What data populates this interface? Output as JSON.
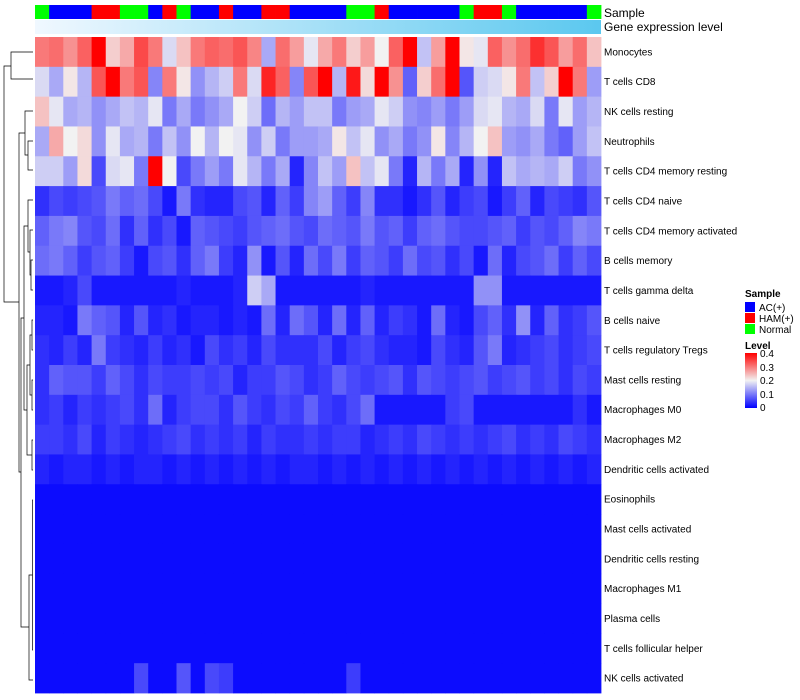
{
  "chart_data": {
    "type": "heatmap",
    "title": "",
    "annotation_tracks": [
      {
        "name": "Sample",
        "categories": [
          "N",
          "A",
          "A",
          "A",
          "H",
          "H",
          "N",
          "N",
          "A",
          "H",
          "N",
          "A",
          "A",
          "H",
          "A",
          "A",
          "H",
          "H",
          "A",
          "A",
          "A",
          "A",
          "N",
          "N",
          "H",
          "A",
          "A",
          "A",
          "A",
          "A",
          "N",
          "H",
          "H",
          "N",
          "A",
          "A",
          "A",
          "A",
          "A",
          "N"
        ]
      },
      {
        "name": "Gene expression level"
      }
    ],
    "sample_colors": {
      "A": "#0000ff",
      "H": "#ff0000",
      "N": "#00ff00"
    },
    "expr_level_gradient": [
      "#f0f8ff",
      "#5bc8ef"
    ],
    "rows": [
      "Monocytes",
      "T cells CD8",
      "NK cells resting",
      "Neutrophils",
      "T cells CD4 memory resting",
      "T cells CD4 naive",
      "T cells CD4 memory activated",
      "B cells memory",
      "T cells gamma delta",
      "B cells naive",
      "T cells regulatory  Tregs",
      "Mast cells resting",
      "Macrophages M0",
      "Macrophages M2",
      "Dendritic cells activated",
      "Eosinophils",
      "Mast cells activated",
      "Dendritic cells resting",
      "Macrophages M1",
      "Plasma cells",
      "T cells follicular helper",
      "NK cells activated"
    ],
    "values": [
      [
        0.3,
        0.31,
        0.28,
        0.32,
        0.4,
        0.23,
        0.26,
        0.34,
        0.3,
        0.18,
        0.24,
        0.3,
        0.32,
        0.31,
        0.33,
        0.29,
        0.14,
        0.31,
        0.27,
        0.19,
        0.26,
        0.3,
        0.23,
        0.27,
        0.2,
        0.32,
        0.4,
        0.16,
        0.27,
        0.4,
        0.21,
        0.19,
        0.32,
        0.28,
        0.31,
        0.36,
        0.33,
        0.27,
        0.31,
        0.24
      ],
      [
        0.18,
        0.14,
        0.21,
        0.15,
        0.33,
        0.4,
        0.3,
        0.33,
        0.11,
        0.3,
        0.21,
        0.12,
        0.15,
        0.17,
        0.3,
        0.18,
        0.37,
        0.32,
        0.11,
        0.33,
        0.4,
        0.15,
        0.38,
        0.22,
        0.4,
        0.28,
        0.08,
        0.23,
        0.31,
        0.41,
        0.07,
        0.17,
        0.18,
        0.21,
        0.3,
        0.16,
        0.23,
        0.4,
        0.3,
        0.13
      ],
      [
        0.24,
        0.19,
        0.14,
        0.15,
        0.12,
        0.14,
        0.16,
        0.15,
        0.19,
        0.1,
        0.14,
        0.1,
        0.12,
        0.14,
        0.2,
        0.17,
        0.09,
        0.15,
        0.13,
        0.16,
        0.16,
        0.1,
        0.13,
        0.14,
        0.19,
        0.17,
        0.12,
        0.11,
        0.13,
        0.1,
        0.13,
        0.18,
        0.19,
        0.15,
        0.14,
        0.18,
        0.1,
        0.19,
        0.13,
        0.15
      ],
      [
        0.14,
        0.26,
        0.2,
        0.22,
        0.12,
        0.19,
        0.14,
        0.15,
        0.1,
        0.16,
        0.12,
        0.2,
        0.15,
        0.2,
        0.19,
        0.12,
        0.17,
        0.1,
        0.13,
        0.13,
        0.14,
        0.21,
        0.16,
        0.19,
        0.12,
        0.14,
        0.1,
        0.12,
        0.21,
        0.11,
        0.15,
        0.2,
        0.24,
        0.13,
        0.12,
        0.14,
        0.1,
        0.08,
        0.13,
        0.16
      ],
      [
        0.17,
        0.17,
        0.13,
        0.22,
        0.06,
        0.18,
        0.19,
        0.1,
        0.41,
        0.2,
        0.06,
        0.1,
        0.13,
        0.1,
        0.19,
        0.15,
        0.1,
        0.14,
        0.03,
        0.11,
        0.16,
        0.13,
        0.24,
        0.16,
        0.19,
        0.1,
        0.03,
        0.15,
        0.1,
        0.14,
        0.03,
        0.12,
        0.03,
        0.16,
        0.14,
        0.15,
        0.14,
        0.17,
        0.1,
        0.12
      ],
      [
        0.04,
        0.06,
        0.05,
        0.06,
        0.07,
        0.1,
        0.08,
        0.09,
        0.06,
        0.02,
        0.1,
        0.04,
        0.03,
        0.03,
        0.06,
        0.07,
        0.03,
        0.08,
        0.05,
        0.11,
        0.13,
        0.08,
        0.05,
        0.11,
        0.04,
        0.04,
        0.02,
        0.04,
        0.07,
        0.03,
        0.05,
        0.06,
        0.02,
        0.05,
        0.08,
        0.03,
        0.06,
        0.05,
        0.04,
        0.07
      ],
      [
        0.08,
        0.1,
        0.11,
        0.07,
        0.06,
        0.09,
        0.04,
        0.08,
        0.04,
        0.06,
        0.02,
        0.08,
        0.07,
        0.06,
        0.05,
        0.07,
        0.08,
        0.09,
        0.07,
        0.06,
        0.09,
        0.08,
        0.07,
        0.1,
        0.07,
        0.08,
        0.05,
        0.08,
        0.09,
        0.07,
        0.06,
        0.06,
        0.07,
        0.08,
        0.05,
        0.07,
        0.06,
        0.08,
        0.11,
        0.1
      ],
      [
        0.09,
        0.1,
        0.08,
        0.05,
        0.07,
        0.08,
        0.05,
        0.02,
        0.06,
        0.07,
        0.04,
        0.08,
        0.1,
        0.05,
        0.03,
        0.12,
        0.02,
        0.07,
        0.03,
        0.09,
        0.06,
        0.1,
        0.05,
        0.08,
        0.07,
        0.05,
        0.09,
        0.06,
        0.07,
        0.04,
        0.06,
        0.02,
        0.09,
        0.03,
        0.06,
        0.07,
        0.09,
        0.05,
        0.08,
        0.06
      ],
      [
        0.02,
        0.02,
        0.03,
        0.06,
        0.02,
        0.02,
        0.02,
        0.02,
        0.02,
        0.02,
        0.03,
        0.02,
        0.02,
        0.02,
        0.03,
        0.17,
        0.14,
        0.02,
        0.02,
        0.02,
        0.02,
        0.02,
        0.02,
        0.03,
        0.02,
        0.02,
        0.02,
        0.02,
        0.02,
        0.02,
        0.02,
        0.12,
        0.12,
        0.02,
        0.02,
        0.02,
        0.02,
        0.02,
        0.02,
        0.02
      ],
      [
        0.03,
        0.03,
        0.02,
        0.1,
        0.08,
        0.07,
        0.03,
        0.07,
        0.03,
        0.04,
        0.02,
        0.03,
        0.03,
        0.02,
        0.03,
        0.02,
        0.09,
        0.03,
        0.09,
        0.07,
        0.03,
        0.09,
        0.03,
        0.08,
        0.03,
        0.05,
        0.04,
        0.02,
        0.09,
        0.03,
        0.02,
        0.06,
        0.08,
        0.04,
        0.12,
        0.03,
        0.08,
        0.04,
        0.05,
        0.07
      ],
      [
        0.04,
        0.03,
        0.05,
        0.03,
        0.1,
        0.05,
        0.04,
        0.03,
        0.05,
        0.03,
        0.04,
        0.02,
        0.06,
        0.04,
        0.05,
        0.03,
        0.06,
        0.04,
        0.04,
        0.04,
        0.06,
        0.03,
        0.05,
        0.06,
        0.04,
        0.03,
        0.03,
        0.02,
        0.06,
        0.04,
        0.03,
        0.07,
        0.1,
        0.03,
        0.04,
        0.05,
        0.06,
        0.04,
        0.05,
        0.06
      ],
      [
        0.04,
        0.08,
        0.07,
        0.07,
        0.05,
        0.08,
        0.06,
        0.04,
        0.06,
        0.05,
        0.05,
        0.06,
        0.05,
        0.06,
        0.03,
        0.05,
        0.05,
        0.07,
        0.06,
        0.04,
        0.05,
        0.08,
        0.06,
        0.05,
        0.06,
        0.07,
        0.04,
        0.07,
        0.06,
        0.05,
        0.06,
        0.07,
        0.05,
        0.06,
        0.07,
        0.05,
        0.06,
        0.04,
        0.06,
        0.05
      ],
      [
        0.04,
        0.05,
        0.03,
        0.05,
        0.04,
        0.05,
        0.06,
        0.04,
        0.09,
        0.03,
        0.05,
        0.06,
        0.06,
        0.04,
        0.07,
        0.05,
        0.04,
        0.06,
        0.05,
        0.08,
        0.05,
        0.04,
        0.06,
        0.09,
        0.02,
        0.02,
        0.02,
        0.02,
        0.02,
        0.05,
        0.06,
        0.02,
        0.02,
        0.02,
        0.02,
        0.02,
        0.02,
        0.02,
        0.04,
        0.02
      ],
      [
        0.05,
        0.05,
        0.04,
        0.06,
        0.03,
        0.05,
        0.04,
        0.03,
        0.04,
        0.05,
        0.06,
        0.04,
        0.05,
        0.04,
        0.05,
        0.03,
        0.05,
        0.04,
        0.04,
        0.05,
        0.04,
        0.05,
        0.05,
        0.03,
        0.04,
        0.05,
        0.04,
        0.06,
        0.05,
        0.04,
        0.05,
        0.04,
        0.05,
        0.06,
        0.04,
        0.05,
        0.04,
        0.06,
        0.05,
        0.04
      ],
      [
        0.03,
        0.02,
        0.03,
        0.03,
        0.02,
        0.03,
        0.02,
        0.03,
        0.03,
        0.02,
        0.03,
        0.02,
        0.03,
        0.02,
        0.03,
        0.02,
        0.03,
        0.02,
        0.03,
        0.03,
        0.02,
        0.03,
        0.02,
        0.03,
        0.02,
        0.03,
        0.02,
        0.03,
        0.02,
        0.03,
        0.02,
        0.03,
        0.02,
        0.03,
        0.02,
        0.03,
        0.02,
        0.03,
        0.02,
        0.03
      ],
      [
        0.01,
        0.01,
        0.01,
        0.01,
        0.01,
        0.01,
        0.01,
        0.01,
        0.01,
        0.01,
        0.01,
        0.01,
        0.01,
        0.01,
        0.01,
        0.01,
        0.01,
        0.01,
        0.01,
        0.01,
        0.01,
        0.01,
        0.01,
        0.01,
        0.01,
        0.01,
        0.01,
        0.01,
        0.01,
        0.01,
        0.01,
        0.01,
        0.01,
        0.01,
        0.01,
        0.01,
        0.01,
        0.01,
        0.01,
        0.01
      ],
      [
        0.01,
        0.01,
        0.01,
        0.01,
        0.01,
        0.01,
        0.01,
        0.01,
        0.01,
        0.01,
        0.01,
        0.01,
        0.01,
        0.01,
        0.01,
        0.01,
        0.01,
        0.01,
        0.01,
        0.01,
        0.01,
        0.01,
        0.01,
        0.01,
        0.01,
        0.01,
        0.01,
        0.01,
        0.01,
        0.01,
        0.01,
        0.01,
        0.01,
        0.01,
        0.01,
        0.01,
        0.01,
        0.01,
        0.01,
        0.01
      ],
      [
        0.01,
        0.01,
        0.01,
        0.01,
        0.01,
        0.01,
        0.01,
        0.01,
        0.01,
        0.01,
        0.01,
        0.01,
        0.01,
        0.01,
        0.01,
        0.01,
        0.01,
        0.01,
        0.01,
        0.01,
        0.01,
        0.01,
        0.01,
        0.01,
        0.01,
        0.01,
        0.01,
        0.01,
        0.01,
        0.01,
        0.01,
        0.01,
        0.01,
        0.01,
        0.01,
        0.01,
        0.01,
        0.01,
        0.01,
        0.01
      ],
      [
        0.01,
        0.01,
        0.01,
        0.01,
        0.01,
        0.01,
        0.01,
        0.01,
        0.01,
        0.01,
        0.01,
        0.01,
        0.01,
        0.01,
        0.01,
        0.01,
        0.01,
        0.01,
        0.01,
        0.01,
        0.01,
        0.01,
        0.01,
        0.01,
        0.01,
        0.01,
        0.01,
        0.01,
        0.01,
        0.01,
        0.01,
        0.01,
        0.01,
        0.01,
        0.01,
        0.01,
        0.01,
        0.01,
        0.01,
        0.01
      ],
      [
        0.01,
        0.01,
        0.01,
        0.01,
        0.01,
        0.01,
        0.01,
        0.01,
        0.01,
        0.01,
        0.01,
        0.01,
        0.01,
        0.01,
        0.01,
        0.01,
        0.01,
        0.01,
        0.01,
        0.01,
        0.01,
        0.01,
        0.01,
        0.01,
        0.01,
        0.01,
        0.01,
        0.01,
        0.01,
        0.01,
        0.01,
        0.01,
        0.01,
        0.01,
        0.01,
        0.01,
        0.01,
        0.01,
        0.01,
        0.01
      ],
      [
        0.01,
        0.01,
        0.01,
        0.01,
        0.01,
        0.01,
        0.01,
        0.01,
        0.01,
        0.01,
        0.01,
        0.01,
        0.01,
        0.01,
        0.01,
        0.01,
        0.01,
        0.01,
        0.01,
        0.01,
        0.01,
        0.01,
        0.01,
        0.01,
        0.01,
        0.01,
        0.01,
        0.01,
        0.01,
        0.01,
        0.01,
        0.01,
        0.01,
        0.01,
        0.01,
        0.01,
        0.01,
        0.01,
        0.01,
        0.01
      ],
      [
        0.01,
        0.01,
        0.01,
        0.01,
        0.01,
        0.01,
        0.01,
        0.06,
        0.01,
        0.01,
        0.07,
        0.01,
        0.06,
        0.05,
        0.01,
        0.01,
        0.01,
        0.01,
        0.01,
        0.01,
        0.01,
        0.01,
        0.05,
        0.01,
        0.01,
        0.01,
        0.01,
        0.01,
        0.01,
        0.01,
        0.01,
        0.01,
        0.01,
        0.01,
        0.01,
        0.01,
        0.01,
        0.01,
        0.01,
        0.01
      ]
    ],
    "color_scale": {
      "min": 0,
      "mid": 0.2,
      "max": 0.4,
      "colors": [
        "#0000ff",
        "#f2f2f2",
        "#ff0000"
      ]
    },
    "legend": {
      "position": "right",
      "sample_title": "Sample",
      "sample_items": [
        {
          "label": "AC(+)",
          "color": "#0000ff"
        },
        {
          "label": "HAM(+)",
          "color": "#ff0000"
        },
        {
          "label": "Normal",
          "color": "#00ff00"
        }
      ],
      "level_title": "Level",
      "level_ticks": [
        "0.4",
        "0.3",
        "0.2",
        "0.1",
        "0"
      ]
    },
    "row_dendrogram": true
  }
}
